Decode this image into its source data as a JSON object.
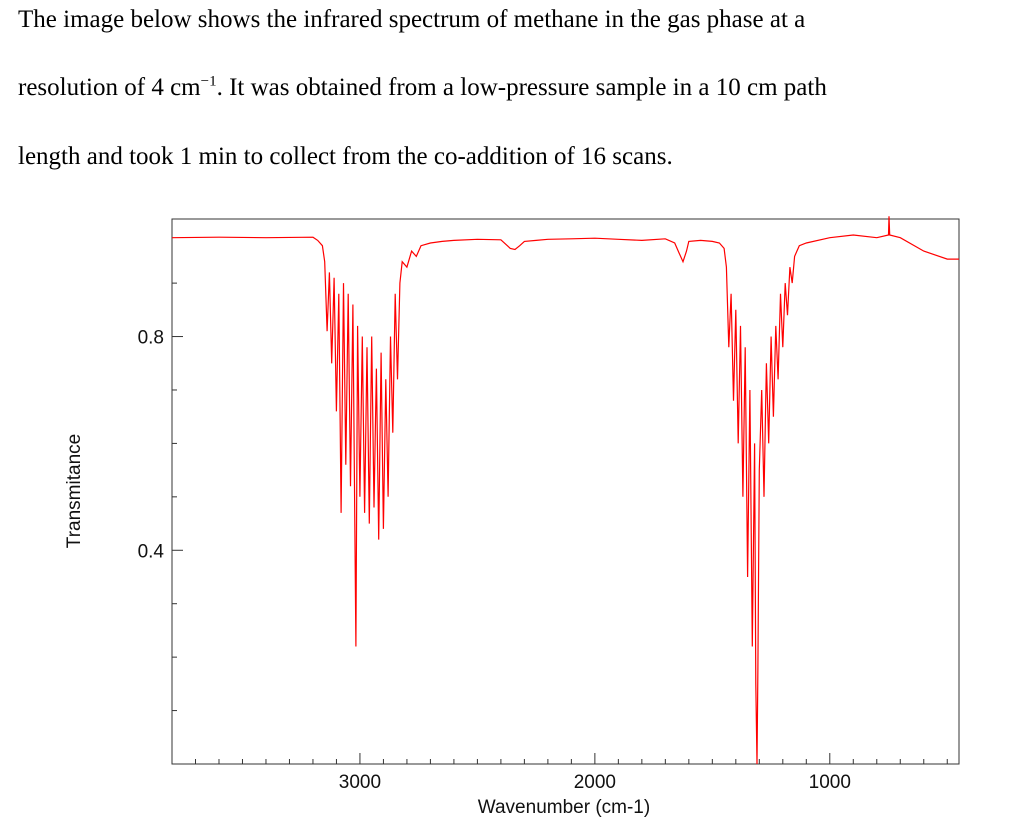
{
  "intro": {
    "line1": "The image below shows the infrared spectrum of methane in the gas phase at a",
    "line2_pre": "resolution of 4 cm",
    "line2_sup": "−1",
    "line2_post": ". It was obtained from a low-pressure sample in a 10 cm path",
    "line3": "length and took 1 min to collect from the co-addition of 16 scans."
  },
  "chart_data": {
    "type": "line",
    "title": "",
    "xlabel": "Wavenumber (cm-1)",
    "ylabel": "Transmitance",
    "x_reversed": true,
    "xlim": [
      3800,
      450
    ],
    "ylim": [
      0.0,
      1.02
    ],
    "xticks": [
      3000,
      2000,
      1000
    ],
    "xtick_labels": [
      "3000",
      "2000",
      "1000"
    ],
    "yticks": [
      0.4,
      0.8
    ],
    "ytick_labels": [
      "0.4",
      "0.8"
    ],
    "grid": false,
    "legend": "none",
    "color": "#ff0000",
    "series": [
      {
        "x": [
          3800,
          3600,
          3400,
          3200,
          3180,
          3160,
          3150,
          3140,
          3130,
          3120,
          3110,
          3100,
          3090,
          3080,
          3070,
          3060,
          3050,
          3040,
          3030,
          3017,
          3010,
          3000,
          2990,
          2980,
          2970,
          2960,
          2950,
          2940,
          2930,
          2920,
          2910,
          2900,
          2890,
          2880,
          2870,
          2860,
          2850,
          2840,
          2830,
          2820,
          2800,
          2780,
          2760,
          2740,
          2700,
          2650,
          2600,
          2500,
          2400,
          2360,
          2340,
          2320,
          2300,
          2250,
          2200,
          2100,
          2000,
          1900,
          1800,
          1700,
          1660,
          1640,
          1625,
          1610,
          1600,
          1550,
          1500,
          1470,
          1450,
          1440,
          1430,
          1420,
          1410,
          1400,
          1390,
          1380,
          1370,
          1360,
          1350,
          1340,
          1330,
          1320,
          1315,
          1310,
          1306,
          1300,
          1290,
          1280,
          1270,
          1260,
          1250,
          1240,
          1230,
          1220,
          1210,
          1200,
          1190,
          1180,
          1170,
          1160,
          1150,
          1140,
          1130,
          1100,
          1000,
          900,
          800,
          750,
          748,
          745,
          700,
          600,
          500,
          450
        ],
        "y": [
          0.985,
          0.986,
          0.985,
          0.986,
          0.98,
          0.97,
          0.94,
          0.81,
          0.92,
          0.75,
          0.91,
          0.66,
          0.88,
          0.47,
          0.9,
          0.56,
          0.88,
          0.52,
          0.86,
          0.22,
          0.82,
          0.5,
          0.8,
          0.47,
          0.78,
          0.45,
          0.8,
          0.48,
          0.74,
          0.42,
          0.77,
          0.44,
          0.72,
          0.5,
          0.8,
          0.62,
          0.88,
          0.72,
          0.9,
          0.94,
          0.93,
          0.96,
          0.95,
          0.97,
          0.975,
          0.978,
          0.98,
          0.982,
          0.981,
          0.965,
          0.963,
          0.97,
          0.978,
          0.98,
          0.982,
          0.983,
          0.984,
          0.982,
          0.98,
          0.983,
          0.975,
          0.955,
          0.94,
          0.96,
          0.978,
          0.98,
          0.978,
          0.975,
          0.965,
          0.93,
          0.78,
          0.88,
          0.68,
          0.85,
          0.6,
          0.82,
          0.5,
          0.78,
          0.35,
          0.7,
          0.22,
          0.6,
          0.15,
          0.0,
          0.18,
          0.55,
          0.7,
          0.5,
          0.75,
          0.6,
          0.8,
          0.65,
          0.82,
          0.72,
          0.88,
          0.78,
          0.9,
          0.84,
          0.93,
          0.9,
          0.95,
          0.96,
          0.97,
          0.975,
          0.985,
          0.99,
          0.985,
          0.99,
          1.025,
          0.99,
          0.985,
          0.96,
          0.945,
          0.945
        ]
      }
    ]
  }
}
